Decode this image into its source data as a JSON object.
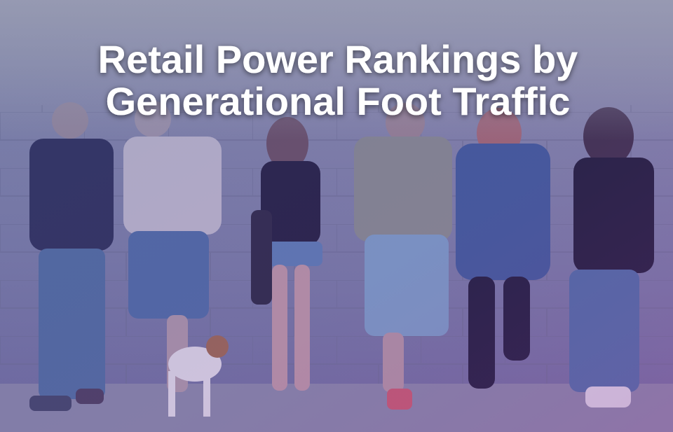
{
  "title_lines": [
    "Retail Power Rankings by",
    "Generational Foot Traffic"
  ]
}
